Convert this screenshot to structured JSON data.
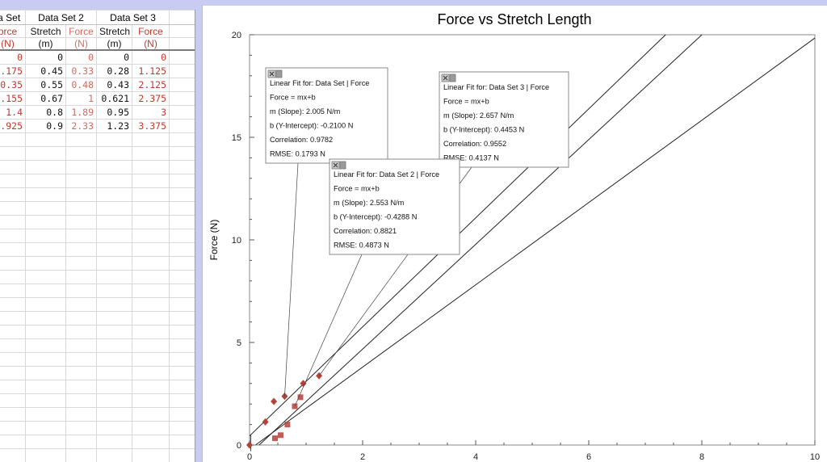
{
  "table": {
    "datasets": [
      {
        "name": "ta Set",
        "columns": [
          {
            "label": "orce",
            "unit": "(N)"
          }
        ]
      },
      {
        "name": "Data Set 2",
        "columns": [
          {
            "label": "Stretch",
            "unit": "(m)"
          },
          {
            "label": "Force",
            "unit": "(N)"
          }
        ]
      },
      {
        "name": "Data Set 3",
        "columns": [
          {
            "label": "Stretch",
            "unit": "(m)"
          },
          {
            "label": "Force",
            "unit": "(N)"
          }
        ]
      }
    ],
    "rows": [
      [
        "0",
        "0",
        "0",
        "0",
        "0"
      ],
      [
        ".175",
        "0.45",
        "0.33",
        "0.28",
        "1.125"
      ],
      [
        "0.35",
        "0.55",
        "0.48",
        "0.43",
        "2.125"
      ],
      [
        ".155",
        "0.67",
        "1",
        "0.621",
        "2.375"
      ],
      [
        "1.4",
        "0.8",
        "1.89",
        "0.95",
        "3"
      ],
      [
        ".925",
        "0.9",
        "2.33",
        "1.23",
        "3.375"
      ]
    ]
  },
  "graph": {
    "title": "Force vs Stretch Length",
    "y_axis_label": "Force (N)",
    "fit_boxes": [
      {
        "title": "Linear Fit for: Data Set | Force",
        "equation": "Force = mx+b",
        "slope": "m (Slope): 2.005 N/m",
        "intercept": "b (Y-Intercept): -0.2100 N",
        "correlation": "Correlation: 0.9782",
        "rmse": "RMSE: 0.1793 N"
      },
      {
        "title": "Linear Fit for: Data Set 3 | Force",
        "equation": "Force = mx+b",
        "slope": "m (Slope): 2.657 N/m",
        "intercept": "b (Y-Intercept): 0.4453 N",
        "correlation": "Correlation: 0.9552",
        "rmse": "RMSE: 0.4137 N"
      },
      {
        "title": "Linear Fit for: Data Set 2 | Force",
        "equation": "Force = mx+b",
        "slope": "m (Slope): 2.553 N/m",
        "intercept": "b (Y-Intercept): -0.4288 N",
        "correlation": "Correlation: 0.8821",
        "rmse": "RMSE: 0.4873 N"
      }
    ]
  },
  "chart_data": {
    "type": "scatter",
    "title": "Force vs Stretch Length",
    "xlabel": "",
    "ylabel": "Force (N)",
    "xlim": [
      0,
      10
    ],
    "ylim": [
      0,
      20
    ],
    "x_ticks": [
      "0",
      "2",
      "4",
      "6",
      "8",
      "10"
    ],
    "y_ticks": [
      "0",
      "5",
      "10",
      "15",
      "20"
    ],
    "grid": false,
    "series": [
      {
        "marker": "square",
        "color": "#b5413a",
        "points": [
          [
            0.45,
            0.33
          ],
          [
            0.55,
            0.48
          ],
          [
            0.67,
            1
          ],
          [
            0.8,
            1.89
          ],
          [
            0.9,
            2.33
          ]
        ]
      },
      {
        "marker": "diamond",
        "color": "#b5413a",
        "points": [
          [
            0,
            0
          ],
          [
            0.28,
            1.125
          ],
          [
            0.43,
            2.125
          ],
          [
            0.621,
            2.375
          ],
          [
            0.95,
            3
          ],
          [
            1.23,
            3.375
          ]
        ]
      }
    ],
    "fit_lines": [
      {
        "m": 2.005,
        "b": -0.21
      },
      {
        "m": 2.553,
        "b": -0.4288
      },
      {
        "m": 2.657,
        "b": 0.4453
      }
    ]
  }
}
